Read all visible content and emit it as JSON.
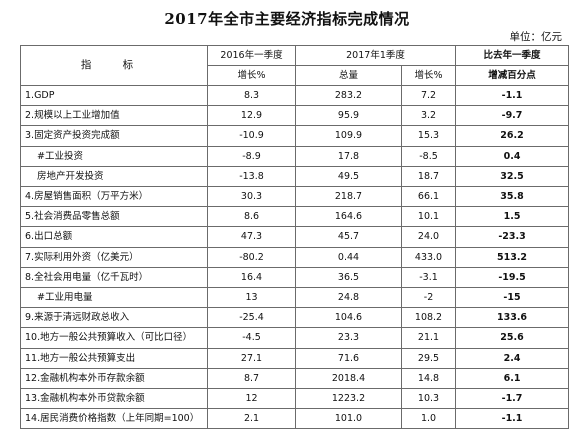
{
  "title": "2017年全市主要经济指标完成情况",
  "unit": "单位：亿元",
  "header": {
    "indicator": "指  标",
    "col_2016q1": "2016年一季度",
    "col_2017q1": "2017年1季度",
    "col_change": "比去年一季度",
    "growth": "增长%",
    "total": "总量",
    "growth2": "增长%",
    "change_sub": "增减百分点"
  },
  "rows": [
    {
      "name": "1.GDP",
      "g2016": "8.3",
      "total": "283.2",
      "g2017": "7.2",
      "change": "-1.1"
    },
    {
      "name": "2.规模以上工业增加值",
      "g2016": "12.9",
      "total": "95.9",
      "g2017": "3.2",
      "change": "-9.7"
    },
    {
      "name": "3.固定资产投资完成额",
      "g2016": "-10.9",
      "total": "109.9",
      "g2017": "15.3",
      "change": "26.2"
    },
    {
      "name": "#工业投资",
      "g2016": "-8.9",
      "total": "17.8",
      "g2017": "-8.5",
      "change": "0.4"
    },
    {
      "name": "房地产开发投资",
      "g2016": "-13.8",
      "total": "49.5",
      "g2017": "18.7",
      "change": "32.5"
    },
    {
      "name": "4.房屋销售面积（万平方米）",
      "g2016": "30.3",
      "total": "218.7",
      "g2017": "66.1",
      "change": "35.8"
    },
    {
      "name": "5.社会消费品零售总额",
      "g2016": "8.6",
      "total": "164.6",
      "g2017": "10.1",
      "change": "1.5"
    },
    {
      "name": "6.出口总额",
      "g2016": "47.3",
      "total": "45.7",
      "g2017": "24.0",
      "change": "-23.3"
    },
    {
      "name": "7.实际利用外资（亿美元）",
      "g2016": "-80.2",
      "total": "0.44",
      "g2017": "433.0",
      "change": "513.2"
    },
    {
      "name": "8.全社会用电量（亿千瓦时）",
      "g2016": "16.4",
      "total": "36.5",
      "g2017": "-3.1",
      "change": "-19.5"
    },
    {
      "name": "#工业用电量",
      "g2016": "13",
      "total": "24.8",
      "g2017": "-2",
      "change": "-15"
    },
    {
      "name": "9.来源于清远财政总收入",
      "g2016": "-25.4",
      "total": "104.6",
      "g2017": "108.2",
      "change": "133.6"
    },
    {
      "name": "10.地方一般公共预算收入（可比口径）",
      "g2016": "-4.5",
      "total": "23.3",
      "g2017": "21.1",
      "change": "25.6"
    },
    {
      "name": "11.地方一般公共预算支出",
      "g2016": "27.1",
      "total": "71.6",
      "g2017": "29.5",
      "change": "2.4"
    },
    {
      "name": "12.金融机构本外币存款余额",
      "g2016": "8.7",
      "total": "2018.4",
      "g2017": "14.8",
      "change": "6.1"
    },
    {
      "name": "13.金融机构本外币贷款余额",
      "g2016": "12",
      "total": "1223.2",
      "g2017": "10.3",
      "change": "-1.7"
    },
    {
      "name": "14.居民消费价格指数（上年同期=100）",
      "g2016": "2.1",
      "total": "101.0",
      "g2017": "1.0",
      "change": "-1.1"
    }
  ]
}
